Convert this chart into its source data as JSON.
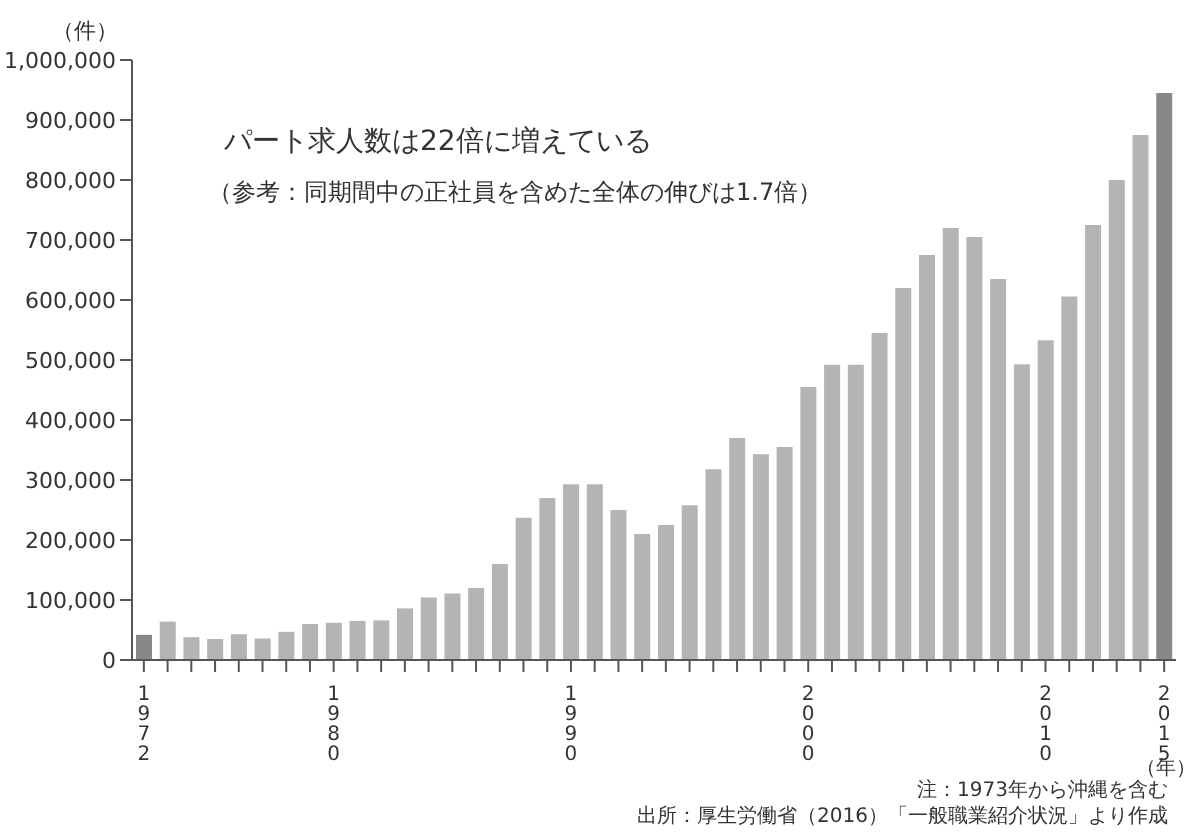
{
  "chart_data": {
    "type": "bar",
    "title": "パート求人数は22倍に増えている",
    "subtitle": "（参考：同期間中の正社員を含めた全体の伸びは1.7倍）",
    "ylabel": "（件）",
    "xlabel": "（年）",
    "categories": [
      "1972",
      null,
      null,
      null,
      null,
      null,
      null,
      null,
      "1980",
      null,
      null,
      null,
      null,
      null,
      null,
      null,
      null,
      null,
      "1990",
      null,
      null,
      null,
      null,
      null,
      null,
      null,
      null,
      null,
      "2000",
      null,
      null,
      null,
      null,
      null,
      null,
      null,
      null,
      null,
      "2010",
      null,
      null,
      null,
      null,
      "2015"
    ],
    "values": [
      42000,
      64000,
      38000,
      35000,
      43000,
      36000,
      47000,
      60000,
      62000,
      65000,
      66000,
      86000,
      104000,
      111000,
      120000,
      160000,
      237000,
      270000,
      293000,
      293000,
      250000,
      210000,
      225000,
      258000,
      318000,
      370000,
      343000,
      355000,
      455000,
      492000,
      492000,
      545000,
      620000,
      675000,
      720000,
      705000,
      635000,
      493000,
      533000,
      606000,
      725000,
      800000,
      875000,
      945000
    ],
    "colors": [
      "#888888",
      "#b4b4b4",
      "#b4b4b4",
      "#b4b4b4",
      "#b4b4b4",
      "#b4b4b4",
      "#b4b4b4",
      "#b4b4b4",
      "#b4b4b4",
      "#b4b4b4",
      "#b4b4b4",
      "#b4b4b4",
      "#b4b4b4",
      "#b4b4b4",
      "#b4b4b4",
      "#b4b4b4",
      "#b4b4b4",
      "#b4b4b4",
      "#b4b4b4",
      "#b4b4b4",
      "#b4b4b4",
      "#b4b4b4",
      "#b4b4b4",
      "#b4b4b4",
      "#b4b4b4",
      "#b4b4b4",
      "#b4b4b4",
      "#b4b4b4",
      "#b4b4b4",
      "#b4b4b4",
      "#b4b4b4",
      "#b4b4b4",
      "#b4b4b4",
      "#b4b4b4",
      "#b4b4b4",
      "#b4b4b4",
      "#b4b4b4",
      "#b4b4b4",
      "#b4b4b4",
      "#b4b4b4",
      "#b4b4b4",
      "#b4b4b4",
      "#b4b4b4",
      "#888888"
    ],
    "ylim": [
      0,
      1000000
    ],
    "yticks": [
      0,
      {
        "value": 100000,
        "label": "100,000"
      },
      {
        "value": 200000,
        "label": "200,000"
      },
      {
        "value": 300000,
        "label": "300,000"
      },
      {
        "value": 400000,
        "label": "400,000"
      },
      {
        "value": 500000,
        "label": "500,000"
      },
      {
        "value": 600000,
        "label": "600,000"
      },
      {
        "value": 700000,
        "label": "700,000"
      },
      {
        "value": 800000,
        "label": "800,000"
      },
      {
        "value": 900000,
        "label": "900,000"
      },
      {
        "value": 1000000,
        "label": "1,000,000"
      }
    ],
    "annotations": [
      "注：1973年から沖縄を含む",
      "出所：厚生労働省（2016）「一般職業紹介状況」より作成"
    ]
  }
}
